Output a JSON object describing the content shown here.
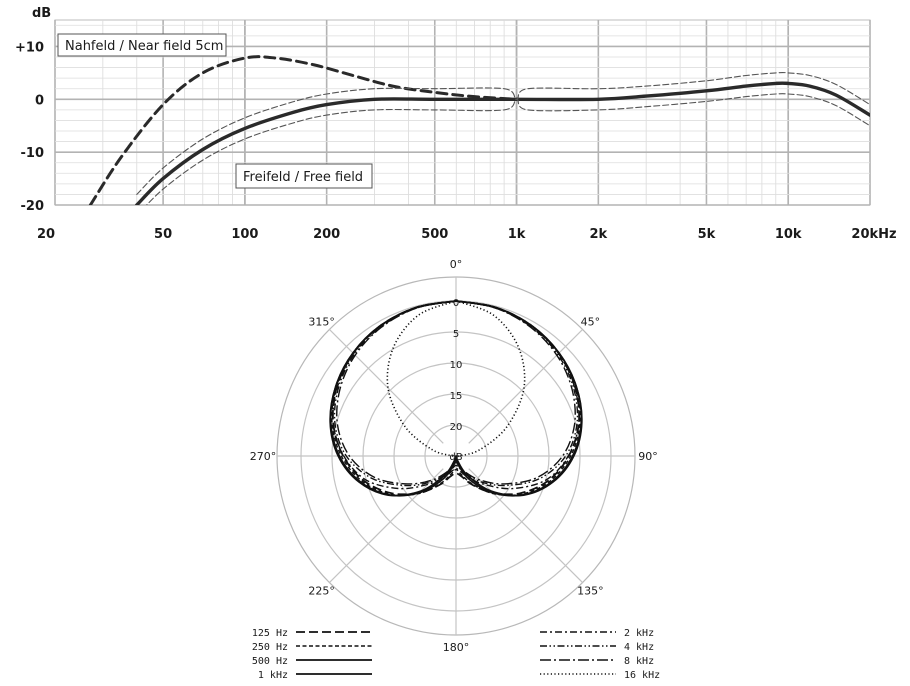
{
  "chart_data": [
    {
      "type": "line",
      "ylabel": "dB",
      "xscale": "log",
      "xlim": [
        20,
        20000
      ],
      "ylim": [
        -20,
        15
      ],
      "x_ticks": [
        20,
        50,
        100,
        200,
        500,
        1000,
        2000,
        5000,
        10000,
        20000
      ],
      "x_tick_labels": [
        "20",
        "50",
        "100",
        "200",
        "500",
        "1k",
        "2k",
        "5k",
        "10k",
        "20kHz"
      ],
      "y_ticks": [
        10,
        0,
        -10,
        -20
      ],
      "y_tick_labels": [
        "+10",
        "0",
        "-10",
        "-20"
      ],
      "annotations": {
        "near_field": "Nahfeld / Near field  5cm",
        "free_field": "Freifeld / Free  field"
      },
      "grid": true,
      "series": [
        {
          "name": "Nahfeld / Near field  5cm",
          "style": "dashed",
          "x": [
            27,
            35,
            50,
            70,
            100,
            130,
            180,
            250,
            350,
            500,
            700,
            1000
          ],
          "y": [
            -20,
            -11,
            -1,
            5,
            7.8,
            7.8,
            6.5,
            4.5,
            2.5,
            1.3,
            0.5,
            0
          ]
        },
        {
          "name": "Freifeld / Free  field",
          "style": "solid",
          "x": [
            40,
            50,
            70,
            100,
            150,
            200,
            300,
            500,
            1000,
            2000,
            3000,
            5000,
            7000,
            9000,
            10000,
            12000,
            15000,
            20000
          ],
          "y": [
            -20,
            -15,
            -9.5,
            -5.5,
            -2.5,
            -1,
            0,
            0,
            0,
            0,
            0.6,
            1.6,
            2.5,
            3,
            3,
            2.5,
            0.8,
            -3
          ]
        },
        {
          "style": "thin-dashed",
          "x": [
            40,
            50,
            70,
            100,
            150,
            200,
            300,
            500,
            900,
            1000,
            1100,
            2000,
            3000,
            5000,
            7000,
            9000,
            10000,
            12000,
            15000,
            20000
          ],
          "y": [
            -18,
            -13,
            -7.5,
            -3.5,
            -0.5,
            1,
            2,
            2,
            2,
            0,
            2,
            2,
            2.5,
            3.5,
            4.5,
            5,
            5,
            4.5,
            2.8,
            -1
          ]
        },
        {
          "style": "thin-dashed",
          "x": [
            40,
            50,
            70,
            100,
            150,
            200,
            300,
            500,
            900,
            1000,
            1100,
            2000,
            3000,
            5000,
            7000,
            9000,
            10000,
            12000,
            15000,
            20000
          ],
          "y": [
            -22,
            -17,
            -11.5,
            -7.5,
            -4.5,
            -3,
            -2,
            -2,
            -2,
            0,
            -2,
            -2,
            -1.4,
            -0.4,
            0.5,
            1,
            1,
            0.5,
            -1.2,
            -5
          ]
        }
      ]
    },
    {
      "type": "polar",
      "unit": "dB",
      "radial_range": [
        0,
        25
      ],
      "radial_ticks": [
        0,
        5,
        10,
        15,
        20
      ],
      "radial_tick_labels": [
        "0",
        "5",
        "10",
        "15",
        "20"
      ],
      "angle_labels": [
        "0°",
        "45°",
        "90°",
        "135°",
        "180°",
        "225°",
        "270°",
        "315°"
      ],
      "angles": [
        0,
        15,
        30,
        45,
        60,
        75,
        90,
        105,
        120,
        135,
        150,
        165,
        180,
        195,
        210,
        225,
        240,
        255,
        270,
        285,
        300,
        315,
        330,
        345
      ],
      "series": [
        {
          "name": "125 Hz",
          "style": "dash-long",
          "attenuation": [
            0,
            0.2,
            0.7,
            1.6,
            2.8,
            4.5,
            6.8,
            9.6,
            13,
            16.6,
            19.6,
            21.6,
            22.2,
            21.6,
            19.6,
            16.6,
            13,
            9.6,
            6.8,
            4.5,
            2.8,
            1.6,
            0.7,
            0.2
          ]
        },
        {
          "name": "250 Hz",
          "style": "dash-short",
          "attenuation": [
            0,
            0.2,
            0.7,
            1.5,
            2.7,
            4.3,
            6.5,
            9.3,
            12.7,
            16.4,
            19.8,
            22,
            22.8,
            22,
            19.8,
            16.4,
            12.7,
            9.3,
            6.5,
            4.3,
            2.7,
            1.5,
            0.7,
            0.2
          ]
        },
        {
          "name": "500 Hz",
          "style": "solid",
          "attenuation": [
            0,
            0.2,
            0.7,
            1.5,
            2.6,
            4.1,
            6.2,
            9,
            12.5,
            16.6,
            20.6,
            23.4,
            24.5,
            23.4,
            20.6,
            16.6,
            12.5,
            9,
            6.2,
            4.1,
            2.6,
            1.5,
            0.7,
            0.2
          ]
        },
        {
          "name": "1 kHz",
          "style": "solid",
          "attenuation": [
            0,
            0.2,
            0.7,
            1.5,
            2.6,
            4,
            6,
            8.8,
            12.4,
            17,
            21.5,
            24.5,
            25,
            24.5,
            21.5,
            17,
            12.4,
            8.8,
            6,
            4,
            2.6,
            1.5,
            0.7,
            0.2
          ]
        },
        {
          "name": "2 kHz",
          "style": "dash-dot",
          "attenuation": [
            0,
            0.2,
            0.8,
            1.6,
            2.9,
            4.5,
            6.9,
            10,
            14.5,
            18.5,
            21,
            22.5,
            23,
            22.5,
            21,
            18.5,
            14.5,
            10,
            6.9,
            4.5,
            2.9,
            1.6,
            0.8,
            0.2
          ]
        },
        {
          "name": "4 kHz",
          "style": "dash-dot-dot",
          "attenuation": [
            0,
            0.3,
            0.9,
            1.8,
            3.1,
            4.8,
            7.3,
            11,
            15.5,
            19,
            21.5,
            23,
            23.5,
            23,
            21.5,
            19,
            15.5,
            11,
            7.3,
            4.8,
            3.1,
            1.8,
            0.9,
            0.3
          ]
        },
        {
          "name": "8 kHz",
          "style": "dash-dot-long",
          "attenuation": [
            0,
            0.3,
            1,
            2,
            3.4,
            5.2,
            7.8,
            11.5,
            16,
            19.5,
            22,
            23.5,
            24,
            23.5,
            22,
            19.5,
            16,
            11.5,
            7.8,
            5.2,
            3.4,
            2,
            1,
            0.3
          ]
        },
        {
          "name": "16 kHz",
          "style": "dotted",
          "attenuation": [
            0,
            1.5,
            4.8,
            9.5,
            15.5,
            21,
            24.5,
            25,
            25,
            25,
            25,
            25,
            25,
            25,
            25,
            25,
            25,
            25,
            24.5,
            21,
            15.5,
            9.5,
            4.8,
            1.5
          ]
        }
      ]
    }
  ]
}
